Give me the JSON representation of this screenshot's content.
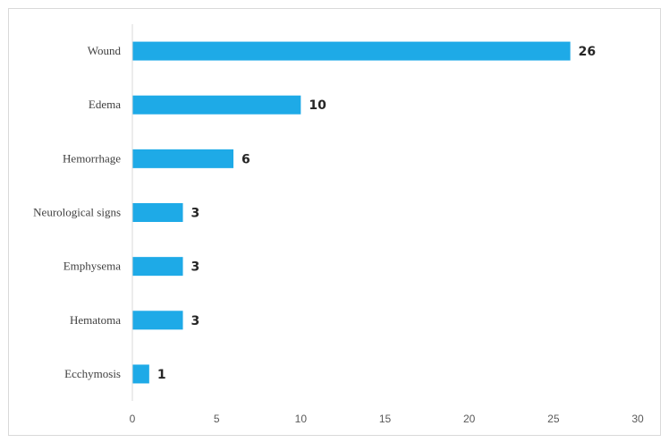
{
  "chart_data": {
    "type": "bar",
    "orientation": "horizontal",
    "categories": [
      "Wound",
      "Edema",
      "Hemorrhage",
      "Neurological signs",
      "Emphysema",
      "Hematoma",
      "Ecchymosis"
    ],
    "values": [
      26,
      10,
      6,
      3,
      3,
      3,
      1
    ],
    "xlim": [
      0,
      30
    ],
    "x_ticks": [
      0,
      5,
      10,
      15,
      20,
      25,
      30
    ],
    "bar_color": "#1eaae7",
    "grid": false,
    "legend": "none",
    "data_labels": true
  }
}
